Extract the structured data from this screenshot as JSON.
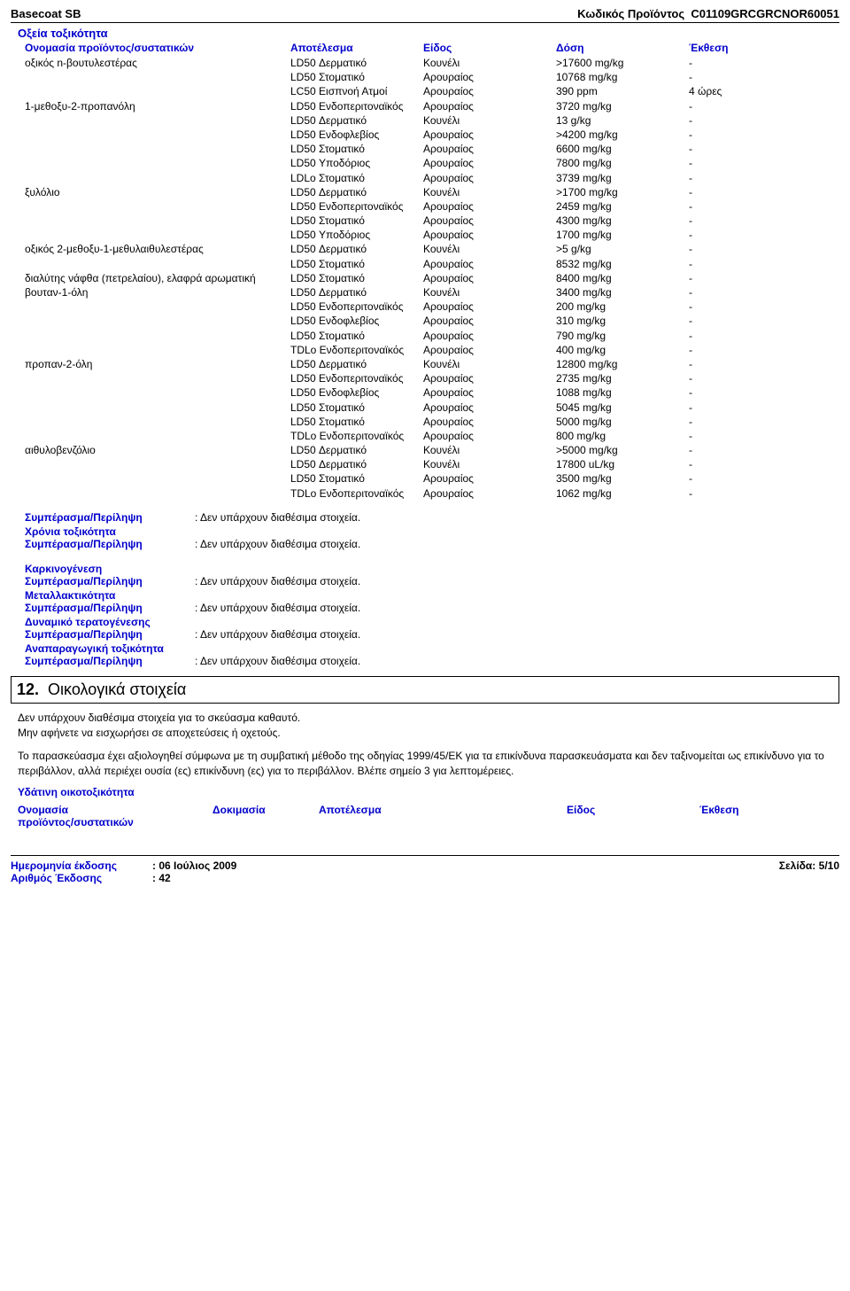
{
  "header": {
    "product": "Basecoat SB",
    "code_label": "Κωδικός Προϊόντος",
    "code": "C01109GRCGRCNOR60051"
  },
  "acute_title": "Οξεία τοξικότητα",
  "tox_headers": {
    "c1": "Ονομασία προϊόντος/συστατικών",
    "c2": "Αποτέλεσμα",
    "c3": "Είδος",
    "c4": "Δόση",
    "c5": "Έκθεση"
  },
  "tox_rows": [
    {
      "c1": "οξικός n-βουτυλεστέρας",
      "c2": "LD50 Δερματικό",
      "c3": "Κουνέλι",
      "c4": ">17600 mg/kg",
      "c5": "-"
    },
    {
      "c1": "",
      "c2": "LD50 Στοματικό",
      "c3": "Αρουραίος",
      "c4": "10768 mg/kg",
      "c5": "-"
    },
    {
      "c1": "",
      "c2": "LC50 Εισπνοή Ατμοί",
      "c3": "Αρουραίος",
      "c4": "390 ppm",
      "c5": "4 ώρες"
    },
    {
      "c1": "1-μεθοξυ-2-προπανόλη",
      "c2": "LD50 Ενδοπεριτοναϊκός",
      "c3": "Αρουραίος",
      "c4": "3720 mg/kg",
      "c5": "-"
    },
    {
      "c1": "",
      "c2": "LD50 Δερματικό",
      "c3": "Κουνέλι",
      "c4": "13 g/kg",
      "c5": "-"
    },
    {
      "c1": "",
      "c2": "LD50 Ενδοφλεβίος",
      "c3": "Αρουραίος",
      "c4": ">4200 mg/kg",
      "c5": "-"
    },
    {
      "c1": "",
      "c2": "LD50 Στοματικό",
      "c3": "Αρουραίος",
      "c4": "6600 mg/kg",
      "c5": "-"
    },
    {
      "c1": "",
      "c2": "LD50 Υποδόριος",
      "c3": "Αρουραίος",
      "c4": "7800 mg/kg",
      "c5": "-"
    },
    {
      "c1": "",
      "c2": "LDLo Στοματικό",
      "c3": "Αρουραίος",
      "c4": "3739 mg/kg",
      "c5": "-"
    },
    {
      "c1": "ξυλόλιο",
      "c2": "LD50 Δερματικό",
      "c3": "Κουνέλι",
      "c4": ">1700 mg/kg",
      "c5": "-"
    },
    {
      "c1": "",
      "c2": "LD50 Ενδοπεριτοναϊκός",
      "c3": "Αρουραίος",
      "c4": "2459 mg/kg",
      "c5": "-"
    },
    {
      "c1": "",
      "c2": "LD50 Στοματικό",
      "c3": "Αρουραίος",
      "c4": "4300 mg/kg",
      "c5": "-"
    },
    {
      "c1": "",
      "c2": "LD50 Υποδόριος",
      "c3": "Αρουραίος",
      "c4": "1700 mg/kg",
      "c5": "-"
    },
    {
      "c1": "οξικός 2-μεθοξυ-1-μεθυλαιθυλεστέρας",
      "c2": "LD50 Δερματικό",
      "c3": "Κουνέλι",
      "c4": ">5 g/kg",
      "c5": "-"
    },
    {
      "c1": "",
      "c2": "LD50 Στοματικό",
      "c3": "Αρουραίος",
      "c4": "8532 mg/kg",
      "c5": "-"
    },
    {
      "c1": "διαλύτης νάφθα (πετρελαίου), ελαφρά αρωματική",
      "c2": "LD50 Στοματικό",
      "c3": "Αρουραίος",
      "c4": "8400 mg/kg",
      "c5": "-"
    },
    {
      "c1": "βουταν-1-όλη",
      "c2": "LD50 Δερματικό",
      "c3": "Κουνέλι",
      "c4": "3400 mg/kg",
      "c5": "-"
    },
    {
      "c1": "",
      "c2": "LD50 Ενδοπεριτοναϊκός",
      "c3": "Αρουραίος",
      "c4": "200 mg/kg",
      "c5": "-"
    },
    {
      "c1": "",
      "c2": "LD50 Ενδοφλεβίος",
      "c3": "Αρουραίος",
      "c4": "310 mg/kg",
      "c5": "-"
    },
    {
      "c1": "",
      "c2": "LD50 Στοματικό",
      "c3": "Αρουραίος",
      "c4": "790 mg/kg",
      "c5": "-"
    },
    {
      "c1": "",
      "c2": "TDLo Ενδοπεριτοναϊκός",
      "c3": "Αρουραίος",
      "c4": "400 mg/kg",
      "c5": "-"
    },
    {
      "c1": "προπαν-2-όλη",
      "c2": "LD50 Δερματικό",
      "c3": "Κουνέλι",
      "c4": "12800 mg/kg",
      "c5": "-"
    },
    {
      "c1": "",
      "c2": "LD50 Ενδοπεριτοναϊκός",
      "c3": "Αρουραίος",
      "c4": "2735 mg/kg",
      "c5": "-"
    },
    {
      "c1": "",
      "c2": "LD50 Ενδοφλεβίος",
      "c3": "Αρουραίος",
      "c4": "1088 mg/kg",
      "c5": "-"
    },
    {
      "c1": "",
      "c2": "LD50 Στοματικό",
      "c3": "Αρουραίος",
      "c4": "5045 mg/kg",
      "c5": "-"
    },
    {
      "c1": "",
      "c2": "LD50 Στοματικό",
      "c3": "Αρουραίος",
      "c4": "5000 mg/kg",
      "c5": "-"
    },
    {
      "c1": "",
      "c2": "TDLo Ενδοπεριτοναϊκός",
      "c3": "Αρουραίος",
      "c4": "800 mg/kg",
      "c5": "-"
    },
    {
      "c1": "αιθυλοβενζόλιο",
      "c2": "LD50 Δερματικό",
      "c3": "Κουνέλι",
      "c4": ">5000 mg/kg",
      "c5": "-"
    },
    {
      "c1": "",
      "c2": "LD50 Δερματικό",
      "c3": "Κουνέλι",
      "c4": "17800 uL/kg",
      "c5": "-"
    },
    {
      "c1": "",
      "c2": "LD50 Στοματικό",
      "c3": "Αρουραίος",
      "c4": "3500 mg/kg",
      "c5": "-"
    },
    {
      "c1": "",
      "c2": "TDLo Ενδοπεριτοναϊκός",
      "c3": "Αρουραίος",
      "c4": "1062 mg/kg",
      "c5": "-"
    }
  ],
  "conclusions": {
    "label": "Συμπέρασμα/Περίληψη",
    "value": ": Δεν υπάρχουν διαθέσιμα στοιχεία.",
    "chronic": "Χρόνια τοξικότητα",
    "carcino": "Καρκινογένεση",
    "muta": "Μεταλλακτικότητα",
    "terato": "Δυναμικό τερατογένεσης",
    "repro": "Αναπαραγωγική τοξικότητα"
  },
  "section12": {
    "title": "12.  Οικολογικά στοιχεία",
    "p1": "Δεν υπάρχουν διαθέσιμα στοιχεία για το σκεύασμα καθαυτό.",
    "p2": "Μην αφήνετε να εισχωρήσει σε αποχετεύσεις ή οχετούς.",
    "p3": "Το παρασκεύασμα έχει αξιολογηθεί σύμφωνα με τη συμβατική μέθοδο της οδηγίας 1999/45/ΕΚ για τα επικίνδυνα παρασκευάσματα και δεν ταξινομείται ως επικίνδυνο για το περιβάλλον, αλλά περιέχει ουσία (ες) επικίνδυνη (ες) για το περιβάλλον. Βλέπε σημείο 3 για λεπτομέρειες.",
    "aquatic": "Υδάτινη οικοτοξικότητα",
    "eh1a": "Ονομασία",
    "eh1b": "προϊόντος/συστατικών",
    "eh2": "Δοκιμασία",
    "eh3": "Αποτέλεσμα",
    "eh4": "Είδος",
    "eh5": "Έκθεση"
  },
  "footer": {
    "date_label": "Ημερομηνία έκδοσης",
    "date_value": ": 06 Ιούλιος 2009",
    "ver_label": "Αριθμός Έκδοσης",
    "ver_value": ": 42",
    "page": "Σελίδα: 5/10"
  }
}
